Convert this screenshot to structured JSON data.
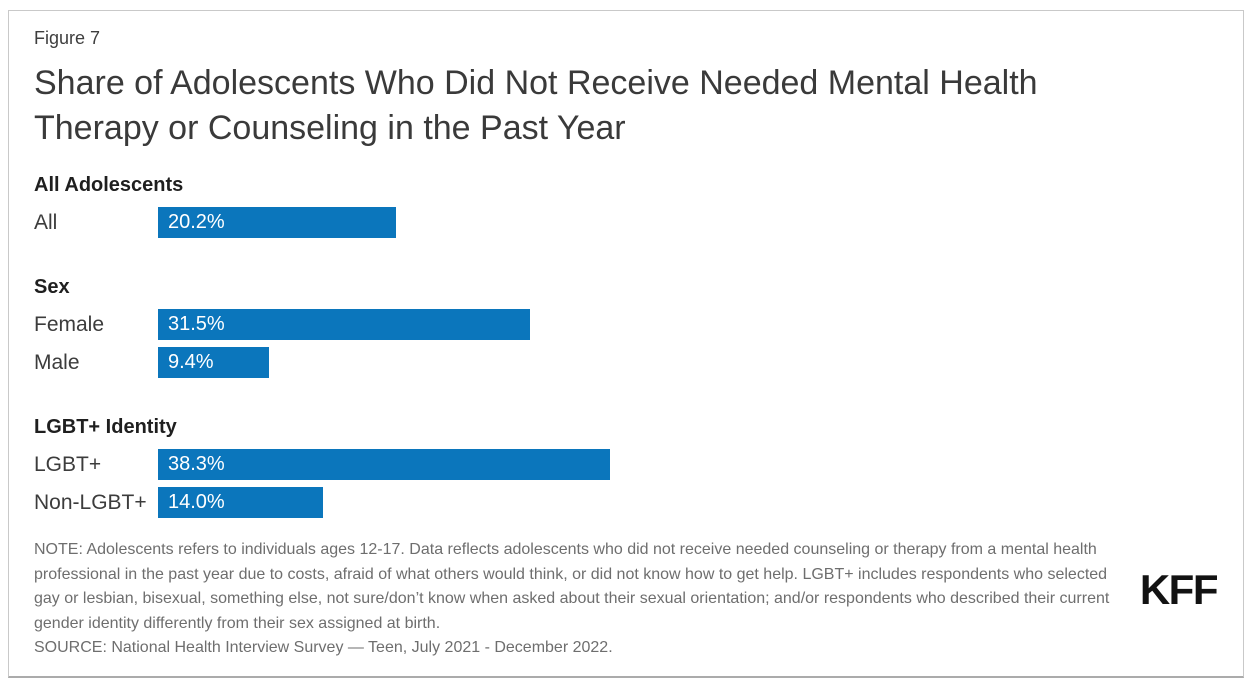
{
  "figure_label": "Figure 7",
  "title": "Share of Adolescents Who Did Not Receive Needed Mental Health Therapy or Counseling in the Past Year",
  "chart_data": {
    "type": "bar",
    "orientation": "horizontal",
    "unit": "percent",
    "xlim": [
      0,
      40
    ],
    "grid": false,
    "bar_color": "#0b76bc",
    "value_label_color": "#ffffff",
    "groups": [
      {
        "label": "All Adolescents",
        "bars": [
          {
            "category": "All",
            "value": 20.2,
            "value_label": "20.2%"
          }
        ]
      },
      {
        "label": "Sex",
        "bars": [
          {
            "category": "Female",
            "value": 31.5,
            "value_label": "31.5%"
          },
          {
            "category": "Male",
            "value": 9.4,
            "value_label": "9.4%"
          }
        ]
      },
      {
        "label": "LGBT+ Identity",
        "bars": [
          {
            "category": "LGBT+",
            "value": 38.3,
            "value_label": "38.3%"
          },
          {
            "category": "Non-LGBT+",
            "value": 14.0,
            "value_label": "14.0%"
          }
        ]
      }
    ]
  },
  "note": "NOTE: Adolescents refers to individuals ages 12-17. Data reflects adolescents who did not receive needed counseling or therapy from a mental health professional in the past year due to costs, afraid of what others would think, or did not know how to get help. LGBT+ includes respondents who selected gay or lesbian, bisexual, something else, not sure/don’t know when asked about their sexual orientation; and/or respondents who described their current gender identity differently from their sex assigned at birth.",
  "source": "SOURCE: National Health Interview Survey — Teen, July 2021 - December 2022.",
  "logo_text": "KFF"
}
